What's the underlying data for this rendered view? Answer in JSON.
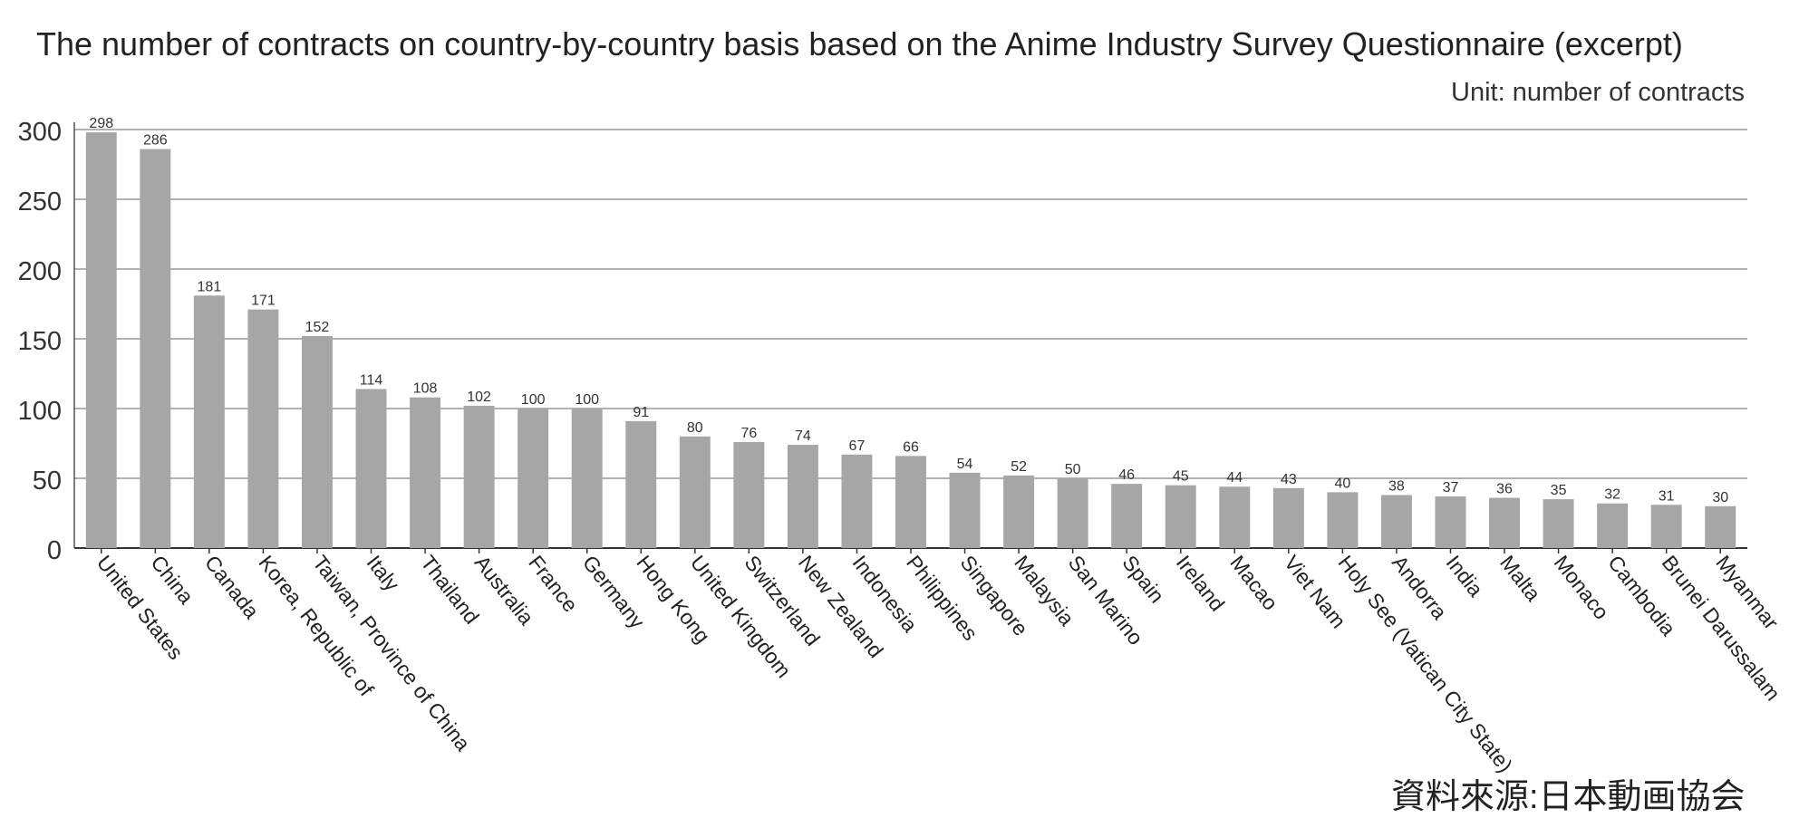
{
  "chart_data": {
    "type": "bar",
    "title": "The number of contracts on country-by-country basis based on the Anime Industry Survey Questionnaire (excerpt)",
    "unit_label": "Unit: number of contracts",
    "source_note": "資料來源:日本動画協会",
    "xlabel": "",
    "ylabel": "",
    "ylim": [
      0,
      300
    ],
    "yticks": [
      0,
      50,
      100,
      150,
      200,
      250,
      300
    ],
    "grid": true,
    "bar_color": "#a6a6a6",
    "grid_color": "#999999",
    "categories": [
      "United States",
      "China",
      "Canada",
      "Korea, Republic of",
      "Taiwan, Province of China",
      "Italy",
      "Thailand",
      "Australia",
      "France",
      "Germany",
      "Hong Kong",
      "United Kingdom",
      "Switzerland",
      "New Zealand",
      "Indonesia",
      "Philippines",
      "Singapore",
      "Malaysia",
      "San Marino",
      "Spain",
      "Ireland",
      "Macao",
      "Viet Nam",
      "Holy See (Vatican City State)",
      "Andorra",
      "India",
      "Malta",
      "Monaco",
      "Cambodia",
      "Brunei Darussalam",
      "Myanmar"
    ],
    "values": [
      298,
      286,
      181,
      171,
      152,
      114,
      108,
      102,
      100,
      100,
      91,
      80,
      76,
      74,
      67,
      66,
      54,
      52,
      50,
      46,
      45,
      44,
      43,
      40,
      38,
      37,
      36,
      35,
      32,
      31,
      30
    ]
  }
}
